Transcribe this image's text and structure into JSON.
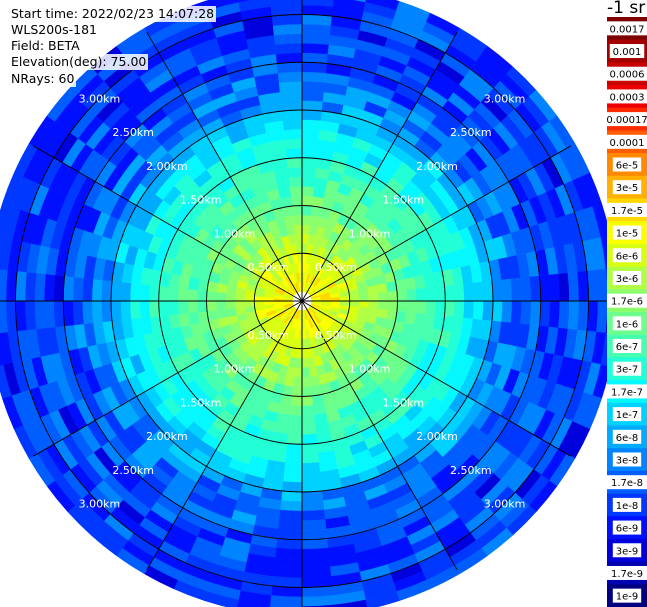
{
  "header": {
    "start_time": "Start time: 2022/02/23 14:07:28",
    "instrument": "WLS200s-181",
    "field": "Field: BETA",
    "elevation": "Elevation(deg): 75.00",
    "nrays": "NRays: 60"
  },
  "colorbar": {
    "unit": "-1 sr",
    "labels": [
      "0.0017",
      "0.001",
      "0.0006",
      "0.0003",
      "0.00017",
      "0.0001",
      "6e-5",
      "3e-5",
      "1.7e-5",
      "1e-5",
      "6e-6",
      "3e-6",
      "1.7e-6",
      "1e-6",
      "6e-7",
      "3e-7",
      "1.7e-7",
      "1e-7",
      "6e-8",
      "3e-8",
      "1.7e-8",
      "1e-8",
      "6e-9",
      "3e-9",
      "1.7e-9",
      "1e-9"
    ],
    "colors": [
      "#7f0000",
      "#a30000",
      "#c80000",
      "#ee0000",
      "#ff2a00",
      "#ff5d00",
      "#ff8a00",
      "#ffb000",
      "#ffd800",
      "#fbff00",
      "#d8ff12",
      "#b0ff44",
      "#8cff6c",
      "#6cff8c",
      "#48ffb0",
      "#22ffd6",
      "#06f8ff",
      "#00d2ff",
      "#00aaff",
      "#0084ff",
      "#005eff",
      "#0038ff",
      "#0010ff",
      "#0000dd",
      "#0000b0",
      "#000080"
    ]
  },
  "chart_data": {
    "type": "heatmap",
    "projection": "polar-ppi",
    "n_rays": 60,
    "range_rings_km": [
      0.5,
      1.0,
      1.5,
      2.0,
      2.5,
      3.0
    ],
    "ring_labels": [
      "0.50km",
      "1.00km",
      "1.50km",
      "2.00km",
      "2.50km",
      "3.00km"
    ],
    "max_range_km": 3.25,
    "range_gate_km": 0.1,
    "beta_profile": [
      {
        "range_km": 0.1,
        "beta": 1e-05
      },
      {
        "range_km": 0.3,
        "beta": 9e-06
      },
      {
        "range_km": 0.5,
        "beta": 4.5e-06
      },
      {
        "range_km": 0.7,
        "beta": 2.5e-06
      },
      {
        "range_km": 0.9,
        "beta": 1.3e-06
      },
      {
        "range_km": 1.0,
        "beta": 9e-07
      },
      {
        "range_km": 1.2,
        "beta": 6e-07
      },
      {
        "range_km": 1.4,
        "beta": 4e-07
      },
      {
        "range_km": 1.6,
        "beta": 2.5e-07
      },
      {
        "range_km": 1.8,
        "beta": 1.5e-07
      },
      {
        "range_km": 2.0,
        "beta": 6e-08
      },
      {
        "range_km": 2.2,
        "beta": 2.5e-08
      },
      {
        "range_km": 2.5,
        "beta": 1.2e-08
      },
      {
        "range_km": 2.8,
        "beta": 1.1e-08
      },
      {
        "range_km": 3.2,
        "beta": 1e-08
      }
    ]
  }
}
